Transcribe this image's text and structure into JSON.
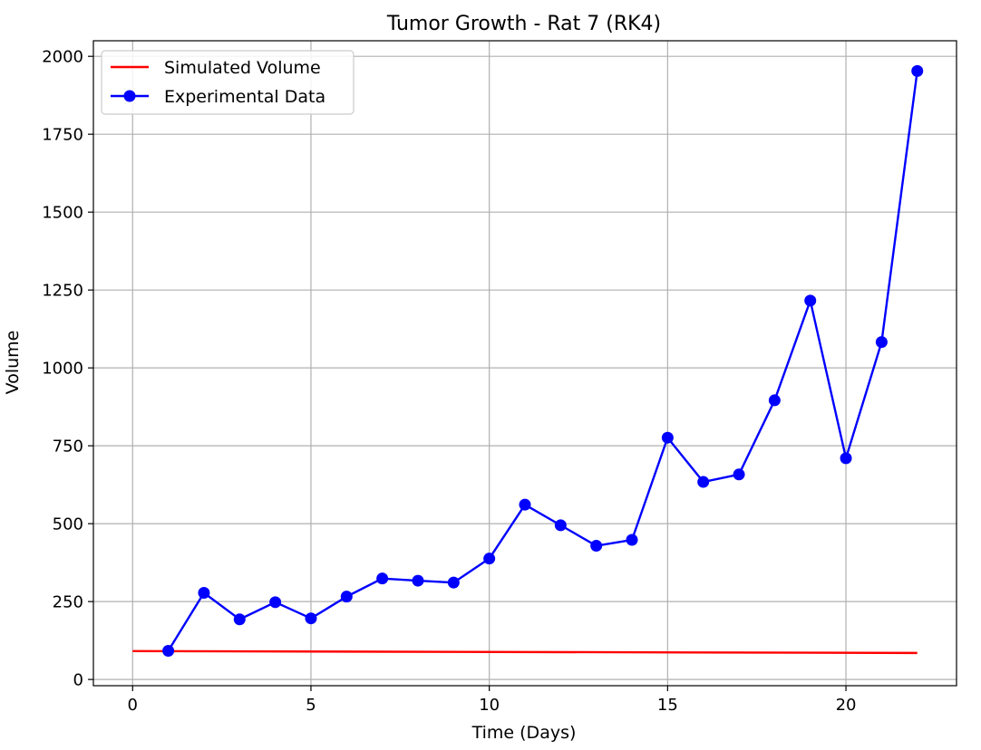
{
  "chart_data": {
    "type": "line",
    "title": "Tumor Growth - Rat 7 (RK4)",
    "xlabel": "Time (Days)",
    "ylabel": "Volume",
    "xlim": [
      -1.1,
      23.1
    ],
    "ylim": [
      -20,
      2050
    ],
    "xticks": [
      0,
      5,
      10,
      15,
      20
    ],
    "yticks": [
      0,
      250,
      500,
      750,
      1000,
      1250,
      1500,
      1750,
      2000
    ],
    "grid": true,
    "legend_position": "top-left",
    "series": [
      {
        "name": "Simulated Volume",
        "style": "line",
        "color": "#ff0000",
        "x": [
          0,
          22
        ],
        "y": [
          91,
          85
        ]
      },
      {
        "name": "Experimental Data",
        "style": "line-markers",
        "color": "#0000ff",
        "x": [
          1,
          2,
          3,
          4,
          5,
          6,
          7,
          8,
          9,
          10,
          11,
          12,
          13,
          14,
          15,
          16,
          17,
          18,
          19,
          20,
          21,
          22
        ],
        "y": [
          92,
          278,
          193,
          248,
          196,
          266,
          324,
          317,
          311,
          388,
          561,
          495,
          429,
          448,
          776,
          634,
          658,
          896,
          1216,
          710,
          1083,
          1953
        ]
      }
    ]
  }
}
